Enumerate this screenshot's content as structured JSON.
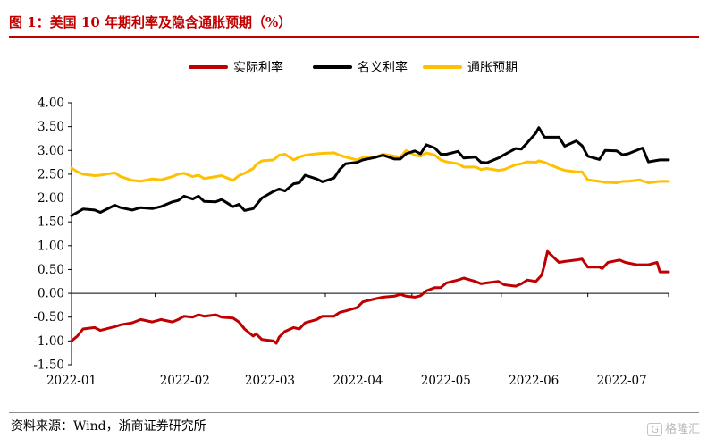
{
  "title": "图 1：美国 10 年期利率及隐含通胀预期（%）",
  "source": "资料来源：Wind，浙商证券研究所",
  "watermark": "格隆汇",
  "chart_data": {
    "type": "line",
    "x_ticks": [
      "2022-01",
      "2022-02",
      "2022-03",
      "2022-04",
      "2022-05",
      "2022-06",
      "2022-07"
    ],
    "y_ticks": [
      "4.00",
      "3.50",
      "3.00",
      "2.50",
      "2.00",
      "1.50",
      "1.00",
      "0.50",
      "0.00",
      "-0.50",
      "-1.00",
      "-1.50"
    ],
    "ylim": [
      -1.5,
      4.0
    ],
    "xlim": [
      "2022-01-03",
      "2022-07-29"
    ],
    "legend_position": "top-center",
    "grid": false,
    "series": [
      {
        "name": "实际利率",
        "color": "#c00000",
        "points": [
          [
            "2022-01-03",
            -1.0
          ],
          [
            "2022-01-05",
            -0.9
          ],
          [
            "2022-01-07",
            -0.75
          ],
          [
            "2022-01-11",
            -0.72
          ],
          [
            "2022-01-13",
            -0.78
          ],
          [
            "2022-01-18",
            -0.7
          ],
          [
            "2022-01-20",
            -0.66
          ],
          [
            "2022-01-24",
            -0.62
          ],
          [
            "2022-01-27",
            -0.55
          ],
          [
            "2022-01-31",
            -0.6
          ],
          [
            "2022-02-03",
            -0.55
          ],
          [
            "2022-02-07",
            -0.6
          ],
          [
            "2022-02-09",
            -0.55
          ],
          [
            "2022-02-11",
            -0.48
          ],
          [
            "2022-02-14",
            -0.5
          ],
          [
            "2022-02-16",
            -0.45
          ],
          [
            "2022-02-18",
            -0.48
          ],
          [
            "2022-02-22",
            -0.45
          ],
          [
            "2022-02-24",
            -0.5
          ],
          [
            "2022-02-28",
            -0.52
          ],
          [
            "2022-03-02",
            -0.6
          ],
          [
            "2022-03-04",
            -0.75
          ],
          [
            "2022-03-07",
            -0.9
          ],
          [
            "2022-03-08",
            -0.85
          ],
          [
            "2022-03-10",
            -0.97
          ],
          [
            "2022-03-14",
            -1.0
          ],
          [
            "2022-03-15",
            -1.05
          ],
          [
            "2022-03-16",
            -0.92
          ],
          [
            "2022-03-18",
            -0.8
          ],
          [
            "2022-03-21",
            -0.72
          ],
          [
            "2022-03-23",
            -0.75
          ],
          [
            "2022-03-25",
            -0.62
          ],
          [
            "2022-03-29",
            -0.55
          ],
          [
            "2022-03-31",
            -0.48
          ],
          [
            "2022-04-04",
            -0.48
          ],
          [
            "2022-04-06",
            -0.4
          ],
          [
            "2022-04-08",
            -0.37
          ],
          [
            "2022-04-12",
            -0.3
          ],
          [
            "2022-04-14",
            -0.18
          ],
          [
            "2022-04-18",
            -0.12
          ],
          [
            "2022-04-21",
            -0.08
          ],
          [
            "2022-04-25",
            -0.06
          ],
          [
            "2022-04-27",
            -0.02
          ],
          [
            "2022-04-29",
            -0.06
          ],
          [
            "2022-05-02",
            -0.08
          ],
          [
            "2022-05-04",
            -0.05
          ],
          [
            "2022-05-06",
            0.05
          ],
          [
            "2022-05-09",
            0.12
          ],
          [
            "2022-05-11",
            0.12
          ],
          [
            "2022-05-13",
            0.22
          ],
          [
            "2022-05-17",
            0.28
          ],
          [
            "2022-05-19",
            0.32
          ],
          [
            "2022-05-23",
            0.25
          ],
          [
            "2022-05-25",
            0.2
          ],
          [
            "2022-05-27",
            0.22
          ],
          [
            "2022-05-31",
            0.25
          ],
          [
            "2022-06-02",
            0.18
          ],
          [
            "2022-06-06",
            0.15
          ],
          [
            "2022-06-08",
            0.2
          ],
          [
            "2022-06-10",
            0.28
          ],
          [
            "2022-06-13",
            0.25
          ],
          [
            "2022-06-15",
            0.38
          ],
          [
            "2022-06-16",
            0.6
          ],
          [
            "2022-06-17",
            0.88
          ],
          [
            "2022-06-21",
            0.65
          ],
          [
            "2022-06-23",
            0.67
          ],
          [
            "2022-06-27",
            0.7
          ],
          [
            "2022-06-29",
            0.72
          ],
          [
            "2022-07-01",
            0.55
          ],
          [
            "2022-07-05",
            0.55
          ],
          [
            "2022-07-06",
            0.52
          ],
          [
            "2022-07-08",
            0.65
          ],
          [
            "2022-07-12",
            0.7
          ],
          [
            "2022-07-14",
            0.65
          ],
          [
            "2022-07-18",
            0.6
          ],
          [
            "2022-07-20",
            0.6
          ],
          [
            "2022-07-22",
            0.6
          ],
          [
            "2022-07-25",
            0.65
          ],
          [
            "2022-07-26",
            0.45
          ],
          [
            "2022-07-29",
            0.45
          ]
        ]
      },
      {
        "name": "名义利率",
        "color": "#000000",
        "points": [
          [
            "2022-01-03",
            1.63
          ],
          [
            "2022-01-05",
            1.7
          ],
          [
            "2022-01-07",
            1.77
          ],
          [
            "2022-01-11",
            1.75
          ],
          [
            "2022-01-13",
            1.7
          ],
          [
            "2022-01-18",
            1.85
          ],
          [
            "2022-01-20",
            1.8
          ],
          [
            "2022-01-24",
            1.75
          ],
          [
            "2022-01-27",
            1.8
          ],
          [
            "2022-01-31",
            1.78
          ],
          [
            "2022-02-03",
            1.82
          ],
          [
            "2022-02-07",
            1.92
          ],
          [
            "2022-02-09",
            1.95
          ],
          [
            "2022-02-11",
            2.04
          ],
          [
            "2022-02-14",
            1.98
          ],
          [
            "2022-02-16",
            2.04
          ],
          [
            "2022-02-18",
            1.93
          ],
          [
            "2022-02-22",
            1.92
          ],
          [
            "2022-02-24",
            1.97
          ],
          [
            "2022-02-28",
            1.82
          ],
          [
            "2022-03-02",
            1.87
          ],
          [
            "2022-03-04",
            1.74
          ],
          [
            "2022-03-07",
            1.78
          ],
          [
            "2022-03-08",
            1.85
          ],
          [
            "2022-03-10",
            2.0
          ],
          [
            "2022-03-14",
            2.14
          ],
          [
            "2022-03-16",
            2.19
          ],
          [
            "2022-03-18",
            2.15
          ],
          [
            "2022-03-21",
            2.3
          ],
          [
            "2022-03-23",
            2.32
          ],
          [
            "2022-03-25",
            2.48
          ],
          [
            "2022-03-29",
            2.4
          ],
          [
            "2022-03-31",
            2.34
          ],
          [
            "2022-04-04",
            2.42
          ],
          [
            "2022-04-06",
            2.6
          ],
          [
            "2022-04-08",
            2.72
          ],
          [
            "2022-04-12",
            2.75
          ],
          [
            "2022-04-14",
            2.8
          ],
          [
            "2022-04-18",
            2.85
          ],
          [
            "2022-04-21",
            2.9
          ],
          [
            "2022-04-25",
            2.82
          ],
          [
            "2022-04-27",
            2.82
          ],
          [
            "2022-04-29",
            2.93
          ],
          [
            "2022-05-02",
            2.99
          ],
          [
            "2022-05-04",
            2.93
          ],
          [
            "2022-05-06",
            3.12
          ],
          [
            "2022-05-09",
            3.05
          ],
          [
            "2022-05-11",
            2.92
          ],
          [
            "2022-05-13",
            2.92
          ],
          [
            "2022-05-17",
            2.98
          ],
          [
            "2022-05-19",
            2.84
          ],
          [
            "2022-05-23",
            2.86
          ],
          [
            "2022-05-25",
            2.75
          ],
          [
            "2022-05-27",
            2.74
          ],
          [
            "2022-05-31",
            2.84
          ],
          [
            "2022-06-02",
            2.91
          ],
          [
            "2022-06-06",
            3.04
          ],
          [
            "2022-06-08",
            3.03
          ],
          [
            "2022-06-10",
            3.16
          ],
          [
            "2022-06-13",
            3.37
          ],
          [
            "2022-06-14",
            3.48
          ],
          [
            "2022-06-16",
            3.28
          ],
          [
            "2022-06-21",
            3.28
          ],
          [
            "2022-06-23",
            3.09
          ],
          [
            "2022-06-27",
            3.2
          ],
          [
            "2022-06-29",
            3.1
          ],
          [
            "2022-07-01",
            2.88
          ],
          [
            "2022-07-05",
            2.81
          ],
          [
            "2022-07-07",
            3.0
          ],
          [
            "2022-07-11",
            2.99
          ],
          [
            "2022-07-13",
            2.91
          ],
          [
            "2022-07-15",
            2.93
          ],
          [
            "2022-07-19",
            3.03
          ],
          [
            "2022-07-20",
            3.05
          ],
          [
            "2022-07-22",
            2.76
          ],
          [
            "2022-07-26",
            2.8
          ],
          [
            "2022-07-29",
            2.8
          ]
        ]
      },
      {
        "name": "通胀预期",
        "color": "#ffc000",
        "points": [
          [
            "2022-01-03",
            2.63
          ],
          [
            "2022-01-05",
            2.55
          ],
          [
            "2022-01-07",
            2.5
          ],
          [
            "2022-01-11",
            2.47
          ],
          [
            "2022-01-13",
            2.48
          ],
          [
            "2022-01-18",
            2.53
          ],
          [
            "2022-01-20",
            2.45
          ],
          [
            "2022-01-24",
            2.37
          ],
          [
            "2022-01-27",
            2.35
          ],
          [
            "2022-01-31",
            2.4
          ],
          [
            "2022-02-03",
            2.38
          ],
          [
            "2022-02-07",
            2.45
          ],
          [
            "2022-02-09",
            2.5
          ],
          [
            "2022-02-11",
            2.52
          ],
          [
            "2022-02-14",
            2.45
          ],
          [
            "2022-02-16",
            2.48
          ],
          [
            "2022-02-18",
            2.41
          ],
          [
            "2022-02-22",
            2.45
          ],
          [
            "2022-02-24",
            2.47
          ],
          [
            "2022-02-28",
            2.37
          ],
          [
            "2022-03-02",
            2.47
          ],
          [
            "2022-03-04",
            2.52
          ],
          [
            "2022-03-07",
            2.62
          ],
          [
            "2022-03-08",
            2.7
          ],
          [
            "2022-03-10",
            2.78
          ],
          [
            "2022-03-14",
            2.8
          ],
          [
            "2022-03-16",
            2.9
          ],
          [
            "2022-03-18",
            2.92
          ],
          [
            "2022-03-21",
            2.8
          ],
          [
            "2022-03-23",
            2.86
          ],
          [
            "2022-03-25",
            2.9
          ],
          [
            "2022-03-29",
            2.93
          ],
          [
            "2022-03-31",
            2.94
          ],
          [
            "2022-04-04",
            2.95
          ],
          [
            "2022-04-06",
            2.9
          ],
          [
            "2022-04-08",
            2.86
          ],
          [
            "2022-04-12",
            2.8
          ],
          [
            "2022-04-14",
            2.85
          ],
          [
            "2022-04-18",
            2.85
          ],
          [
            "2022-04-21",
            2.92
          ],
          [
            "2022-04-25",
            2.88
          ],
          [
            "2022-04-27",
            2.86
          ],
          [
            "2022-04-29",
            3.0
          ],
          [
            "2022-05-02",
            2.9
          ],
          [
            "2022-05-04",
            2.88
          ],
          [
            "2022-05-06",
            2.95
          ],
          [
            "2022-05-09",
            2.9
          ],
          [
            "2022-05-11",
            2.8
          ],
          [
            "2022-05-13",
            2.76
          ],
          [
            "2022-05-17",
            2.72
          ],
          [
            "2022-05-19",
            2.65
          ],
          [
            "2022-05-23",
            2.65
          ],
          [
            "2022-05-25",
            2.6
          ],
          [
            "2022-05-27",
            2.62
          ],
          [
            "2022-05-31",
            2.58
          ],
          [
            "2022-06-02",
            2.6
          ],
          [
            "2022-06-06",
            2.7
          ],
          [
            "2022-06-08",
            2.72
          ],
          [
            "2022-06-10",
            2.76
          ],
          [
            "2022-06-13",
            2.75
          ],
          [
            "2022-06-14",
            2.78
          ],
          [
            "2022-06-16",
            2.75
          ],
          [
            "2022-06-21",
            2.62
          ],
          [
            "2022-06-23",
            2.58
          ],
          [
            "2022-06-27",
            2.55
          ],
          [
            "2022-06-29",
            2.55
          ],
          [
            "2022-07-01",
            2.38
          ],
          [
            "2022-07-05",
            2.35
          ],
          [
            "2022-07-07",
            2.33
          ],
          [
            "2022-07-11",
            2.32
          ],
          [
            "2022-07-13",
            2.35
          ],
          [
            "2022-07-15",
            2.35
          ],
          [
            "2022-07-19",
            2.38
          ],
          [
            "2022-07-20",
            2.36
          ],
          [
            "2022-07-22",
            2.32
          ],
          [
            "2022-07-26",
            2.35
          ],
          [
            "2022-07-29",
            2.35
          ]
        ]
      }
    ]
  }
}
